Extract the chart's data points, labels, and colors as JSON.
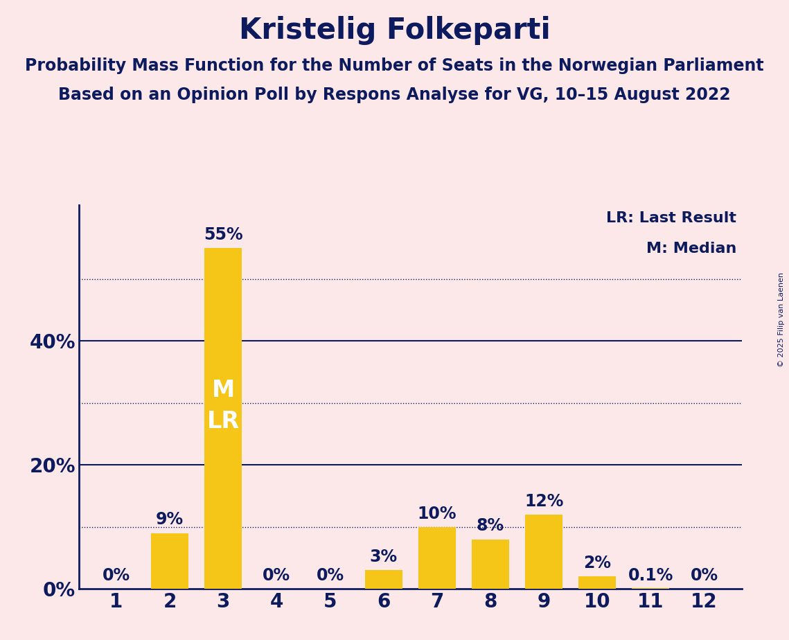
{
  "title": "Kristelig Folkeparti",
  "subtitle1": "Probability Mass Function for the Number of Seats in the Norwegian Parliament",
  "subtitle2": "Based on an Opinion Poll by Respons Analyse for VG, 10–15 August 2022",
  "copyright": "© 2025 Filip van Laenen",
  "seats": [
    1,
    2,
    3,
    4,
    5,
    6,
    7,
    8,
    9,
    10,
    11,
    12
  ],
  "values": [
    0.0,
    9.0,
    55.0,
    0.0,
    0.0,
    3.0,
    10.0,
    8.0,
    12.0,
    2.0,
    0.1,
    0.0
  ],
  "bar_labels": [
    "0%",
    "9%",
    "55%",
    "0%",
    "0%",
    "3%",
    "10%",
    "8%",
    "12%",
    "2%",
    "0.1%",
    "0%"
  ],
  "bar_color": "#F5C518",
  "bg_color": "#fce8e8",
  "text_color": "#0d1b5e",
  "title_fontsize": 30,
  "subtitle_fontsize": 17,
  "bar_label_fontsize": 17,
  "axis_tick_fontsize": 20,
  "median_seat": 3,
  "lr_seat": 3,
  "legend_lr": "LR: Last Result",
  "legend_m": "M: Median",
  "ylim": [
    0,
    62
  ],
  "ytick_positions": [
    0,
    20,
    40
  ],
  "ytick_labels": [
    "0%",
    "20%",
    "40%"
  ],
  "solid_gridlines": [
    20,
    40
  ],
  "dotted_gridlines": [
    10,
    30,
    50
  ]
}
